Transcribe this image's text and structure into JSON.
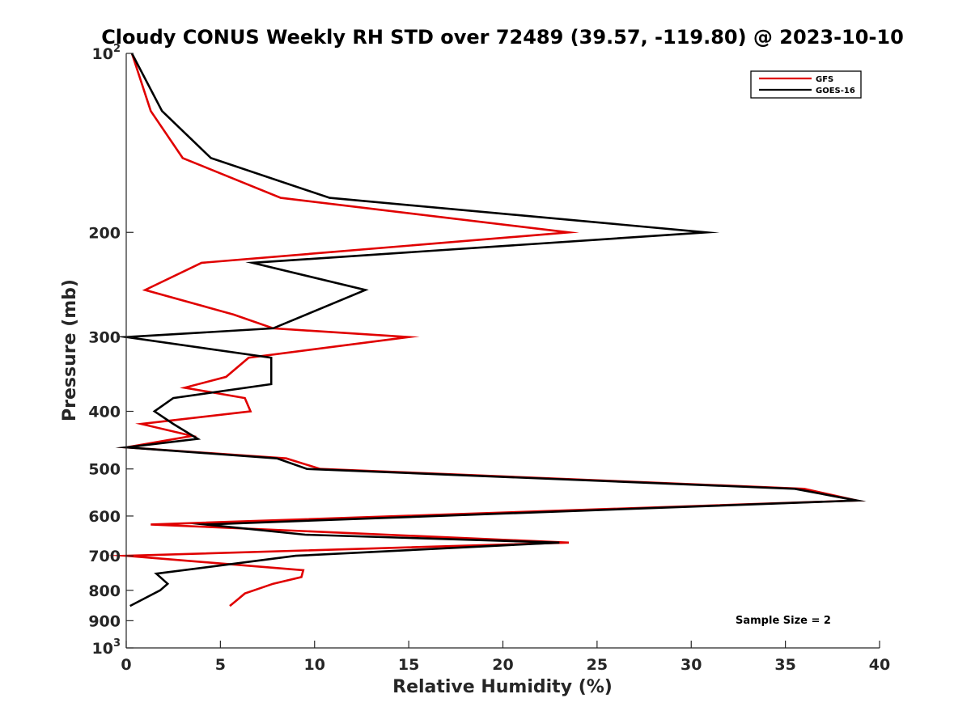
{
  "chart_data": {
    "type": "line",
    "title": "Cloudy CONUS Weekly RH STD over 72489 (39.57, -119.80) @ 2023-10-10",
    "xlabel": "Relative Humidity (%)",
    "ylabel": "Pressure (mb)",
    "xlim": [
      0,
      40
    ],
    "ylim": [
      100,
      1000
    ],
    "yscale": "log",
    "y_reversed": true,
    "grid": false,
    "legend_position": "top-right",
    "x_ticks": [
      {
        "value": 0,
        "label": "0"
      },
      {
        "value": 5,
        "label": "5"
      },
      {
        "value": 10,
        "label": "10"
      },
      {
        "value": 15,
        "label": "15"
      },
      {
        "value": 20,
        "label": "20"
      },
      {
        "value": 25,
        "label": "25"
      },
      {
        "value": 30,
        "label": "30"
      },
      {
        "value": 35,
        "label": "35"
      },
      {
        "value": 40,
        "label": "40"
      }
    ],
    "y_ticks": [
      {
        "value": 100,
        "label": "10",
        "sup": "2"
      },
      {
        "value": 200,
        "label": "200",
        "sup": ""
      },
      {
        "value": 300,
        "label": "300",
        "sup": ""
      },
      {
        "value": 400,
        "label": "400",
        "sup": ""
      },
      {
        "value": 500,
        "label": "500",
        "sup": ""
      },
      {
        "value": 600,
        "label": "600",
        "sup": ""
      },
      {
        "value": 700,
        "label": "700",
        "sup": ""
      },
      {
        "value": 800,
        "label": "800",
        "sup": ""
      },
      {
        "value": 900,
        "label": "900",
        "sup": ""
      },
      {
        "value": 1000,
        "label": "10",
        "sup": "3"
      }
    ],
    "series": [
      {
        "name": "GFS",
        "color": "#e00000",
        "points": [
          {
            "x": 0.3,
            "y": 100
          },
          {
            "x": 1.3,
            "y": 125
          },
          {
            "x": 3.0,
            "y": 150
          },
          {
            "x": 8.2,
            "y": 175
          },
          {
            "x": 23.5,
            "y": 200
          },
          {
            "x": 4.0,
            "y": 225
          },
          {
            "x": 1.0,
            "y": 250
          },
          {
            "x": 5.7,
            "y": 275
          },
          {
            "x": 7.8,
            "y": 290
          },
          {
            "x": 15.0,
            "y": 300
          },
          {
            "x": 6.5,
            "y": 325
          },
          {
            "x": 5.3,
            "y": 350
          },
          {
            "x": 3.1,
            "y": 365
          },
          {
            "x": 6.3,
            "y": 380
          },
          {
            "x": 6.6,
            "y": 400
          },
          {
            "x": 0.8,
            "y": 420
          },
          {
            "x": 3.5,
            "y": 440
          },
          {
            "x": 0.0,
            "y": 460
          },
          {
            "x": 8.5,
            "y": 480
          },
          {
            "x": 10.3,
            "y": 500
          },
          {
            "x": 36.0,
            "y": 540
          },
          {
            "x": 38.8,
            "y": 565
          },
          {
            "x": 1.3,
            "y": 620
          },
          {
            "x": 23.5,
            "y": 665
          },
          {
            "x": 0.0,
            "y": 700
          },
          {
            "x": 9.4,
            "y": 740
          },
          {
            "x": 9.3,
            "y": 760
          },
          {
            "x": 7.8,
            "y": 780
          },
          {
            "x": 6.3,
            "y": 810
          },
          {
            "x": 5.9,
            "y": 830
          },
          {
            "x": 5.5,
            "y": 850
          }
        ]
      },
      {
        "name": "GOES-16",
        "color": "#000000",
        "points": [
          {
            "x": 0.3,
            "y": 100
          },
          {
            "x": 1.9,
            "y": 125
          },
          {
            "x": 4.5,
            "y": 150
          },
          {
            "x": 10.8,
            "y": 175
          },
          {
            "x": 30.8,
            "y": 200
          },
          {
            "x": 6.7,
            "y": 225
          },
          {
            "x": 12.7,
            "y": 250
          },
          {
            "x": 7.8,
            "y": 290
          },
          {
            "x": 0.0,
            "y": 300
          },
          {
            "x": 7.7,
            "y": 325
          },
          {
            "x": 7.7,
            "y": 360
          },
          {
            "x": 2.5,
            "y": 380
          },
          {
            "x": 1.5,
            "y": 400
          },
          {
            "x": 2.5,
            "y": 420
          },
          {
            "x": 3.8,
            "y": 445
          },
          {
            "x": 0.0,
            "y": 460
          },
          {
            "x": 8.0,
            "y": 480
          },
          {
            "x": 9.6,
            "y": 500
          },
          {
            "x": 35.5,
            "y": 540
          },
          {
            "x": 38.8,
            "y": 565
          },
          {
            "x": 4.2,
            "y": 620
          },
          {
            "x": 9.5,
            "y": 645
          },
          {
            "x": 23.0,
            "y": 665
          },
          {
            "x": 9.0,
            "y": 700
          },
          {
            "x": 1.6,
            "y": 750
          },
          {
            "x": 2.2,
            "y": 780
          },
          {
            "x": 1.8,
            "y": 800
          },
          {
            "x": 0.2,
            "y": 850
          }
        ]
      }
    ],
    "annotation": "Sample Size = 2"
  }
}
